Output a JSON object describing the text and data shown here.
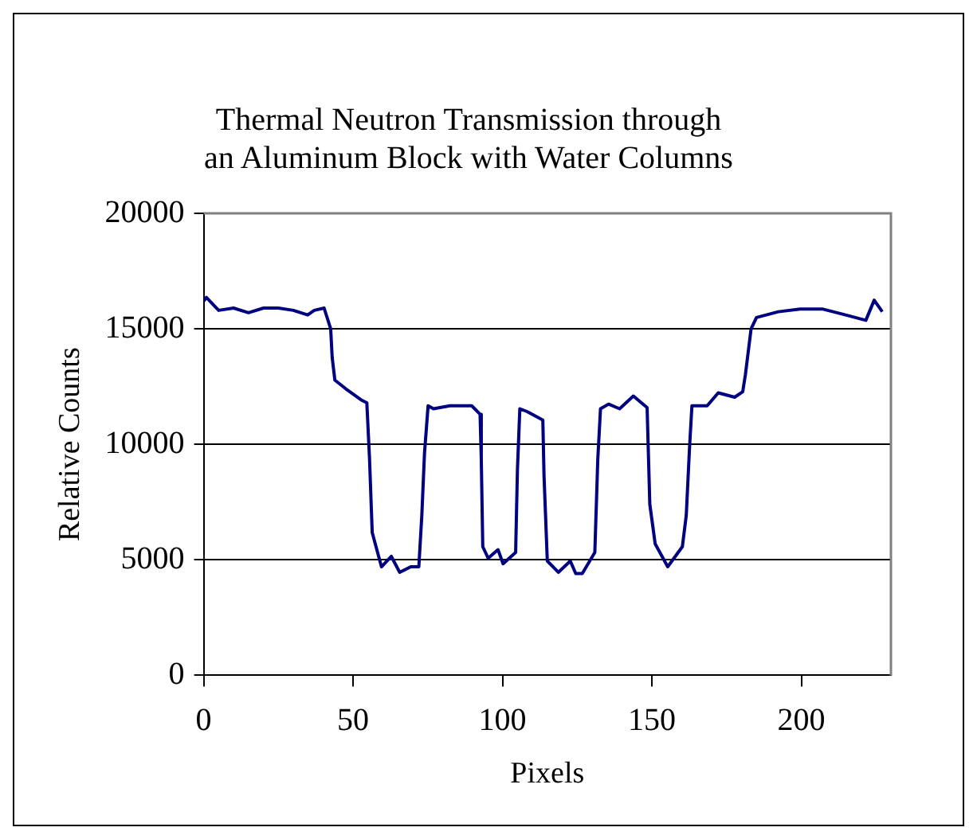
{
  "chart_data": {
    "type": "line",
    "title": "Thermal Neutron Transmission through an Aluminum Block with Water Columns",
    "xlabel": "Pixels",
    "ylabel": "Relative Counts",
    "x": [
      0,
      0.9,
      5,
      10,
      15,
      20,
      25,
      30,
      34.8,
      37,
      40.3,
      42.5,
      43,
      43.9,
      47.6,
      53,
      54.6,
      55.5,
      56.4,
      58.2,
      59.5,
      62.8,
      65.6,
      69.3,
      72,
      73,
      73.9,
      75.1,
      76.9,
      82.4,
      89.7,
      92.5,
      92.9,
      93.4,
      95.2,
      98.5,
      100.2,
      104.4,
      105,
      105.8,
      108.2,
      111.8,
      113.5,
      113.9,
      115,
      118.7,
      122.7,
      124.5,
      126.7,
      130.9,
      131.9,
      132.8,
      135.5,
      139.2,
      143.8,
      148.4,
      149.3,
      151.1,
      155.3,
      160.2,
      161.5,
      162.6,
      163.4,
      168.5,
      172.2,
      177.7,
      180.4,
      181.3,
      183.2,
      185,
      192.3,
      199.6,
      207,
      214.3,
      221.6,
      224.4,
      227.1
    ],
    "series": [
      {
        "color": "#000080",
        "values": [
          16200,
          16360,
          15800,
          15900,
          15700,
          15900,
          15900,
          15800,
          15600,
          15800,
          15900,
          15000,
          13760,
          12780,
          12400,
          11900,
          11800,
          9380,
          6180,
          5320,
          4700,
          5150,
          4460,
          4700,
          4700,
          6920,
          9620,
          11670,
          11540,
          11670,
          11670,
          11300,
          9380,
          5570,
          5070,
          5440,
          4830,
          5320,
          8890,
          11540,
          11420,
          11170,
          11050,
          8640,
          4950,
          4460,
          4950,
          4410,
          4410,
          5320,
          9380,
          11540,
          11740,
          11540,
          12090,
          11590,
          7410,
          5690,
          4700,
          5570,
          6920,
          9870,
          11670,
          11670,
          12230,
          12040,
          12280,
          13020,
          15000,
          15490,
          15740,
          15860,
          15860,
          15620,
          15370,
          16240,
          15740
        ]
      }
    ],
    "xlim": [
      0,
      230
    ],
    "xticks": [
      0,
      50,
      100,
      150,
      200
    ],
    "ylim": [
      0,
      20000
    ],
    "yticks": [
      0,
      5000,
      10000,
      15000,
      20000
    ],
    "grid": "y",
    "legend": false,
    "marker": "none",
    "line_style": "solid"
  }
}
